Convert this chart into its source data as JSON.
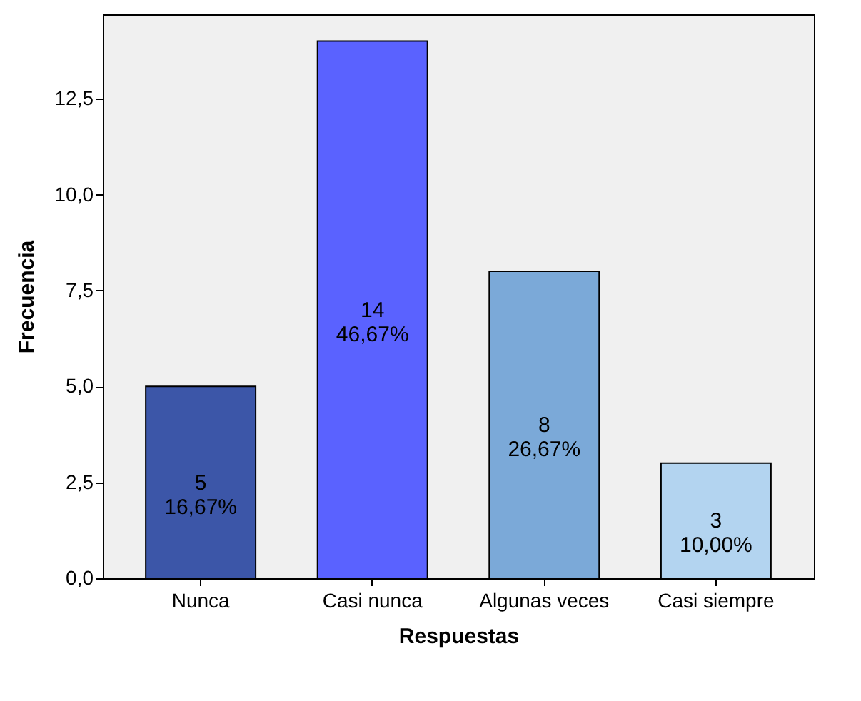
{
  "chart_data": {
    "type": "bar",
    "xlabel": "Respuestas",
    "ylabel": "Frecuencia",
    "categories": [
      "Nunca",
      "Casi nunca",
      "Algunas veces",
      "Casi siempre"
    ],
    "values": [
      5,
      14,
      8,
      3
    ],
    "colors": [
      "#3c56a8",
      "#5a62ff",
      "#7ba9d8",
      "#b3d4f0"
    ],
    "value_labels": [
      "5\n16,67%",
      "14\n46,67%",
      "8\n26,67%",
      "3\n10,00%"
    ],
    "ylim": [
      0,
      14.7
    ],
    "yticks": [
      {
        "value": 0,
        "label": "0,0"
      },
      {
        "value": 2.5,
        "label": "2,5"
      },
      {
        "value": 5,
        "label": "5,0"
      },
      {
        "value": 7.5,
        "label": "7,5"
      },
      {
        "value": 10,
        "label": "10,0"
      },
      {
        "value": 12.5,
        "label": "12,5"
      }
    ],
    "legend": false
  }
}
